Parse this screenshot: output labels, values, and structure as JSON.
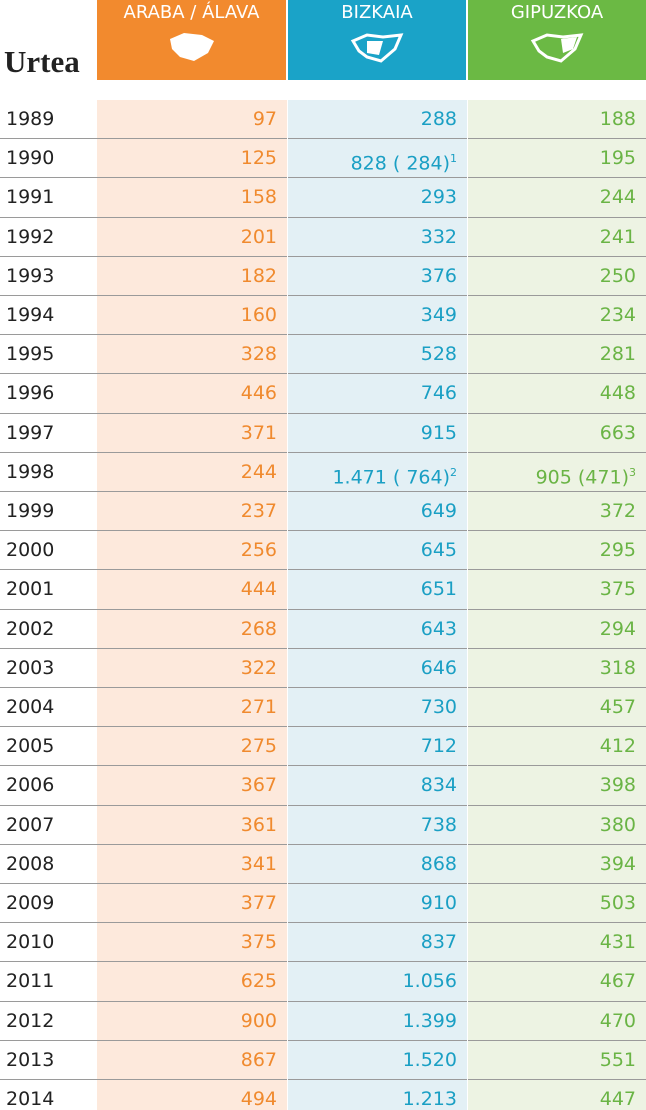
{
  "table": {
    "header": {
      "year": "Urtea",
      "columns": [
        "ARABA / ÁLAVA",
        "BIZKAIA",
        "GIPUZKOA"
      ]
    },
    "rows": [
      {
        "year": "1989",
        "cells": [
          "97",
          "288",
          "188"
        ]
      },
      {
        "year": "1990",
        "cells": [
          "125",
          "828 ( 284)",
          "195"
        ],
        "notes": [
          null,
          "1",
          null
        ]
      },
      {
        "year": "1991",
        "cells": [
          "158",
          "293",
          "244"
        ]
      },
      {
        "year": "1992",
        "cells": [
          "201",
          "332",
          "241"
        ]
      },
      {
        "year": "1993",
        "cells": [
          "182",
          "376",
          "250"
        ]
      },
      {
        "year": "1994",
        "cells": [
          "160",
          "349",
          "234"
        ]
      },
      {
        "year": "1995",
        "cells": [
          "328",
          "528",
          "281"
        ]
      },
      {
        "year": "1996",
        "cells": [
          "446",
          "746",
          "448"
        ]
      },
      {
        "year": "1997",
        "cells": [
          "371",
          "915",
          "663"
        ]
      },
      {
        "year": "1998",
        "cells": [
          "244",
          "1.471 ( 764)",
          "905 (471)"
        ],
        "notes": [
          null,
          "2",
          "3"
        ]
      },
      {
        "year": "1999",
        "cells": [
          "237",
          "649",
          "372"
        ]
      },
      {
        "year": "2000",
        "cells": [
          "256",
          "645",
          "295"
        ]
      },
      {
        "year": "2001",
        "cells": [
          "444",
          "651",
          "375"
        ]
      },
      {
        "year": "2002",
        "cells": [
          "268",
          "643",
          "294"
        ]
      },
      {
        "year": "2003",
        "cells": [
          "322",
          "646",
          "318"
        ]
      },
      {
        "year": "2004",
        "cells": [
          "271",
          "730",
          "457"
        ]
      },
      {
        "year": "2005",
        "cells": [
          "275",
          "712",
          "412"
        ]
      },
      {
        "year": "2006",
        "cells": [
          "367",
          "834",
          "398"
        ]
      },
      {
        "year": "2007",
        "cells": [
          "361",
          "738",
          "380"
        ]
      },
      {
        "year": "2008",
        "cells": [
          "341",
          "868",
          "394"
        ]
      },
      {
        "year": "2009",
        "cells": [
          "377",
          "910",
          "503"
        ]
      },
      {
        "year": "2010",
        "cells": [
          "375",
          "837",
          "431"
        ]
      },
      {
        "year": "2011",
        "cells": [
          "625",
          "1.056",
          "467"
        ]
      },
      {
        "year": "2012",
        "cells": [
          "900",
          "1.399",
          "470"
        ]
      },
      {
        "year": "2013",
        "cells": [
          "867",
          "1.520",
          "551"
        ]
      },
      {
        "year": "2014",
        "cells": [
          "494",
          "1.213",
          "447"
        ]
      }
    ]
  }
}
